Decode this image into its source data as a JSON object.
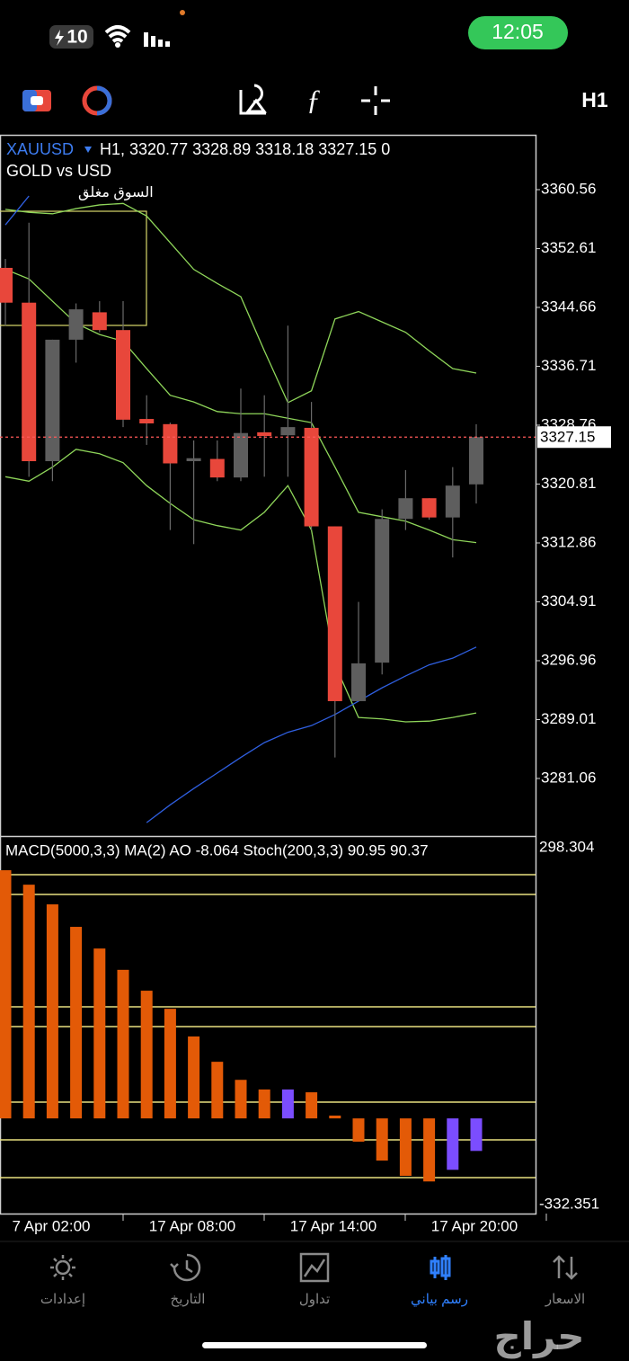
{
  "status_bar": {
    "battery": "10",
    "time": "12:05"
  },
  "toolbar": {
    "timeframe": "H1"
  },
  "chart_data": [
    {
      "type": "candlestick",
      "symbol": "XAUUSD",
      "header": "H1, 3320.77 3328.89 3318.18 3327.15 0",
      "subtitle": "GOLD vs USD",
      "status": "السوق مغلق",
      "open": [
        3350.0,
        3345.3,
        3323.9,
        3340.3,
        3344.0,
        3341.6,
        3329.6,
        3328.9,
        3323.9,
        3324.2,
        3321.7,
        3327.8,
        3327.4,
        3328.4,
        3315.1,
        3291.5,
        3296.7,
        3316.1,
        3318.9,
        3316.3,
        3320.77
      ],
      "high": [
        3351.2,
        3356.1,
        3340.3,
        3345.2,
        3345.5,
        3345.5,
        3332.8,
        3329.1,
        3326.7,
        3326.7,
        3333.7,
        3332.8,
        3342.2,
        3331.9,
        3315.1,
        3304.9,
        3317.4,
        3322.7,
        3318.9,
        3323.1,
        3328.89
      ],
      "low": [
        3342.2,
        3321.8,
        3321.2,
        3337.2,
        3341.3,
        3328.5,
        3326.1,
        3314.6,
        3312.7,
        3321.2,
        3321.2,
        3321.8,
        3321.8,
        3314.6,
        3283.9,
        3291.5,
        3295.1,
        3314.6,
        3316.0,
        3310.9,
        3318.18
      ],
      "close": [
        3345.3,
        3323.9,
        3340.3,
        3344.4,
        3341.6,
        3329.5,
        3329.0,
        3323.6,
        3324.3,
        3321.7,
        3327.7,
        3327.3,
        3328.5,
        3315.1,
        3291.5,
        3296.6,
        3316.1,
        3318.9,
        3316.3,
        3320.6,
        3327.15
      ],
      "up_color": "#5e5e5e",
      "down_color": "#e8473b",
      "lines": [
        {
          "color": "#8fd65a",
          "values": [
            3357.9,
            3357.5,
            3357.3,
            3358.0,
            3358.5,
            3358.7,
            3357.0,
            3353.4,
            3349.8,
            3347.9,
            3346.1,
            3338.8,
            3331.8,
            3333.4,
            3343.1,
            3344.1,
            3342.7,
            3341.3,
            3338.8,
            3336.4,
            3335.8
          ]
        },
        {
          "color": "#8fd65a",
          "values": [
            3349.8,
            3348.5,
            3345.5,
            3342.5,
            3341.0,
            3340.1,
            3336.4,
            3332.8,
            3331.9,
            3330.6,
            3330.3,
            3330.3,
            3329.7,
            3329.1,
            3323.1,
            3317.0,
            3316.4,
            3315.8,
            3314.6,
            3313.3,
            3312.9
          ]
        },
        {
          "color": "#8fd65a",
          "values": [
            3321.8,
            3321.2,
            3323.1,
            3325.5,
            3324.9,
            3323.7,
            3320.6,
            3318.2,
            3316.0,
            3315.2,
            3314.6,
            3317.0,
            3320.6,
            3314.6,
            3296.4,
            3289.3,
            3289.1,
            3288.7,
            3288.8,
            3289.3,
            3289.9
          ]
        },
        {
          "color": "#2f5fe0",
          "values": [
            3355.8,
            3359.7,
            null,
            null,
            null,
            null,
            3275.1,
            3277.5,
            3279.7,
            3281.8,
            3283.9,
            3285.9,
            3287.3,
            3288.2,
            3289.7,
            3291.5,
            3293.3,
            3294.9,
            3296.4,
            3297.3,
            3298.8
          ]
        }
      ],
      "last_price": 3327.15,
      "ylim": [
        3273.29,
        3367.96
      ],
      "yticks": [
        3360.56,
        3352.61,
        3344.66,
        3336.71,
        3328.76,
        3320.81,
        3312.86,
        3304.91,
        3296.96,
        3289.01,
        3281.06
      ],
      "x_labels": [
        "7 Apr 02:00",
        "17 Apr 08:00",
        "17 Apr 14:00",
        "17 Apr 20:00"
      ]
    },
    {
      "type": "bar",
      "title": "MACD(5000,3,3) MA(2) AO -8.064 Stoch(200,3,3) 90.95 90.37",
      "values": [
        61.8,
        58.2,
        53.3,
        47.7,
        42.3,
        37.0,
        31.8,
        27.3,
        20.4,
        14.1,
        9.6,
        7.2,
        7.2,
        6.5,
        0.7,
        -5.8,
        -10.5,
        -14.3,
        -15.7,
        -12.8,
        -8.1
      ],
      "colors": [
        "#e35a07",
        "#e35a07",
        "#e35a07",
        "#e35a07",
        "#e35a07",
        "#e35a07",
        "#e35a07",
        "#e35a07",
        "#e35a07",
        "#e35a07",
        "#e35a07",
        "#e35a07",
        "#7b4dff",
        "#e35a07",
        "#e35a07",
        "#e35a07",
        "#e35a07",
        "#e35a07",
        "#e35a07",
        "#7b4dff",
        "#7b4dff"
      ],
      "ylim": [
        -23.7,
        69.2
      ],
      "scale_labels": [
        "298.304",
        "-332.351"
      ]
    }
  ],
  "nav": [
    {
      "label": "إعدادات",
      "active": false
    },
    {
      "label": "التاريخ",
      "active": false
    },
    {
      "label": "تداول",
      "active": false
    },
    {
      "label": "رسم بياني",
      "active": true
    },
    {
      "label": "الاسعار",
      "active": false
    }
  ],
  "watermark": "حراج"
}
